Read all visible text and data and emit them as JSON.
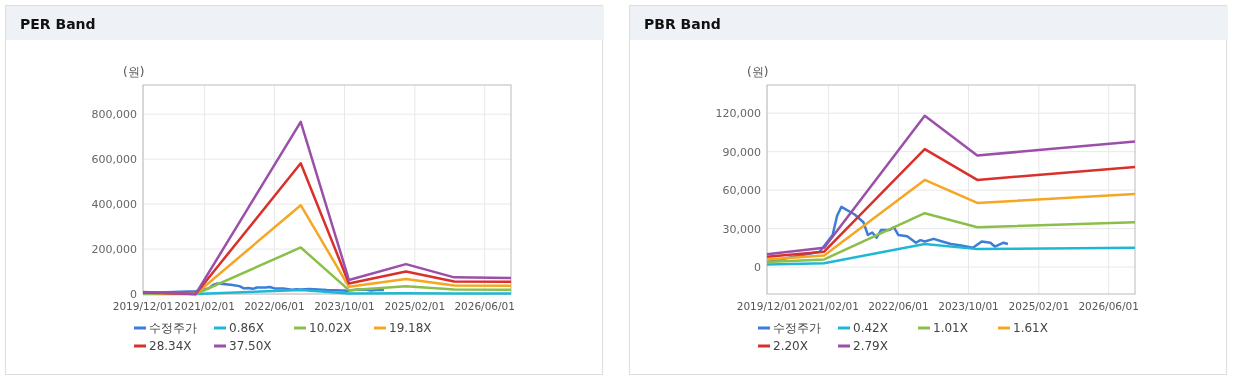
{
  "chart_data": [
    {
      "type": "line",
      "title": "PER Band",
      "ylabel": "(원)",
      "xlim": [
        "2019-12-01",
        "2026-12-01"
      ],
      "ylim": [
        0,
        930000
      ],
      "xticks": [
        {
          "value": "2019-12-01",
          "label": "2019/12/01"
        },
        {
          "value": "2021-02-01",
          "label": "2021/02/01"
        },
        {
          "value": "2022-06-01",
          "label": "2022/06/01"
        },
        {
          "value": "2023-10-01",
          "label": "2023/10/01"
        },
        {
          "value": "2025-02-01",
          "label": "2025/02/01"
        },
        {
          "value": "2026-06-01",
          "label": "2026/06/01"
        }
      ],
      "yticks": [
        0,
        {
          "value": 200000,
          "label": "200,000"
        },
        {
          "value": 400000,
          "label": "400,000"
        },
        {
          "value": 600000,
          "label": "600,000"
        },
        {
          "value": 800000,
          "label": "800,000"
        }
      ],
      "grid": true,
      "legend": "bottom",
      "marker": "none",
      "line_style": "solid",
      "series": [
        {
          "name": "수정주가",
          "color": "#3b7dd8",
          "x": [
            "2019-12",
            "2020-12",
            "2021-03",
            "2021-04",
            "2021-05",
            "2021-08",
            "2021-10",
            "2021-11",
            "2021-12",
            "2022-01",
            "2022-02",
            "2022-04",
            "2022-05",
            "2022-06",
            "2022-08",
            "2022-10",
            "2022-11",
            "2022-12",
            "2023-02",
            "2023-04",
            "2023-06",
            "2023-08",
            "2023-11",
            "2024-01",
            "2024-03",
            "2024-04",
            "2024-06",
            "2024-07"
          ],
          "values": [
            4000,
            12000,
            25000,
            40000,
            47000,
            41000,
            35000,
            25000,
            27000,
            23000,
            29000,
            29000,
            31000,
            25000,
            24000,
            19000,
            21000,
            20000,
            22000,
            20000,
            18000,
            17000,
            15000,
            20000,
            19000,
            16000,
            19000,
            18000
          ]
        },
        {
          "name": "0.86X",
          "color": "#1fb8d4",
          "x": [
            "2019-12",
            "2020-12",
            "2022-12",
            "2023-11",
            "2024-12",
            "2025-11",
            "2026-12"
          ],
          "values": [
            0,
            0,
            18000,
            2000,
            3000,
            2000,
            2000
          ]
        },
        {
          "name": "10.02X",
          "color": "#8bbf4a",
          "x": [
            "2019-12",
            "2020-12",
            "2022-12",
            "2023-11",
            "2024-12",
            "2025-11",
            "2026-12"
          ],
          "values": [
            3000,
            0,
            207000,
            17000,
            35000,
            20000,
            19000
          ]
        },
        {
          "name": "19.18X",
          "color": "#f5a623",
          "x": [
            "2019-12",
            "2020-12",
            "2022-12",
            "2023-11",
            "2024-12",
            "2025-11",
            "2026-12"
          ],
          "values": [
            5000,
            0,
            395000,
            32000,
            67000,
            38000,
            37000
          ]
        },
        {
          "name": "28.34X",
          "color": "#d9302c",
          "x": [
            "2019-12",
            "2020-12",
            "2022-12",
            "2023-11",
            "2024-12",
            "2025-11",
            "2026-12"
          ],
          "values": [
            7000,
            0,
            582000,
            47000,
            100000,
            56000,
            54000
          ]
        },
        {
          "name": "37.50X",
          "color": "#9b4fa8",
          "x": [
            "2019-12",
            "2020-12",
            "2022-12",
            "2023-11",
            "2024-12",
            "2025-11",
            "2026-12"
          ],
          "values": [
            9000,
            0,
            766000,
            62000,
            133000,
            74000,
            71000
          ]
        }
      ]
    },
    {
      "type": "line",
      "title": "PBR Band",
      "ylabel": "(원)",
      "xlim": [
        "2019-12-01",
        "2026-12-01"
      ],
      "ylim": [
        -21000,
        142000
      ],
      "xticks": [
        {
          "value": "2019-12-01",
          "label": "2019/12/01"
        },
        {
          "value": "2021-02-01",
          "label": "2021/02/01"
        },
        {
          "value": "2022-06-01",
          "label": "2022/06/01"
        },
        {
          "value": "2023-10-01",
          "label": "2023/10/01"
        },
        {
          "value": "2025-02-01",
          "label": "2025/02/01"
        },
        {
          "value": "2026-06-01",
          "label": "2026/06/01"
        }
      ],
      "yticks": [
        0,
        {
          "value": 30000,
          "label": "30,000"
        },
        {
          "value": 60000,
          "label": "60,000"
        },
        {
          "value": 90000,
          "label": "90,000"
        },
        {
          "value": 120000,
          "label": "120,000"
        }
      ],
      "grid": true,
      "legend": "bottom",
      "marker": "none",
      "line_style": "solid",
      "series": [
        {
          "name": "수정주가",
          "color": "#3b7dd8",
          "x": [
            "2019-12",
            "2020-12",
            "2021-03",
            "2021-04",
            "2021-05",
            "2021-08",
            "2021-10",
            "2021-11",
            "2021-12",
            "2022-01",
            "2022-02",
            "2022-04",
            "2022-05",
            "2022-06",
            "2022-08",
            "2022-10",
            "2022-11",
            "2022-12",
            "2023-02",
            "2023-04",
            "2023-06",
            "2023-08",
            "2023-11",
            "2024-01",
            "2024-03",
            "2024-04",
            "2024-06",
            "2024-07"
          ],
          "values": [
            4000,
            12000,
            25000,
            40000,
            47000,
            41000,
            35000,
            25000,
            27000,
            23000,
            29000,
            29000,
            31000,
            25000,
            24000,
            19000,
            21000,
            20000,
            22000,
            20000,
            18000,
            17000,
            15000,
            20000,
            19000,
            16000,
            19000,
            18000
          ]
        },
        {
          "name": "0.42X",
          "color": "#1fb8d4",
          "x": [
            "2019-12",
            "2021-01",
            "2022-12",
            "2023-12",
            "2026-12"
          ],
          "values": [
            2000,
            3000,
            18000,
            14000,
            15000
          ]
        },
        {
          "name": "1.01X",
          "color": "#8bbf4a",
          "x": [
            "2019-12",
            "2021-01",
            "2022-12",
            "2023-12",
            "2026-12"
          ],
          "values": [
            4000,
            6000,
            42000,
            31000,
            35000
          ]
        },
        {
          "name": "1.61X",
          "color": "#f5a623",
          "x": [
            "2019-12",
            "2021-01",
            "2022-12",
            "2023-12",
            "2026-12"
          ],
          "values": [
            6000,
            9000,
            68000,
            50000,
            57000
          ]
        },
        {
          "name": "2.20X",
          "color": "#d9302c",
          "x": [
            "2019-12",
            "2021-01",
            "2022-12",
            "2023-12",
            "2026-12"
          ],
          "values": [
            8000,
            12000,
            92000,
            68000,
            78000
          ]
        },
        {
          "name": "2.79X",
          "color": "#9b4fa8",
          "x": [
            "2019-12",
            "2021-01",
            "2022-12",
            "2023-12",
            "2026-12"
          ],
          "values": [
            10000,
            15000,
            118000,
            87000,
            98000
          ]
        }
      ]
    }
  ]
}
